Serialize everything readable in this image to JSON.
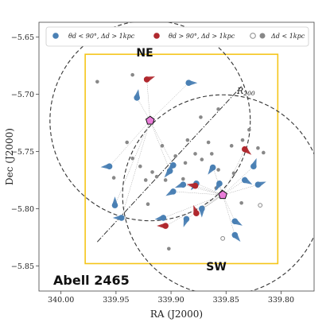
{
  "chart_data": {
    "type": "scatter",
    "xlabel": "RA (J2000)",
    "ylabel": "Dec (J2000)",
    "xlim": [
      340.02,
      339.77
    ],
    "ylim": [
      -5.872,
      -5.637
    ],
    "x_ticks": [
      "340.00",
      "339.95",
      "339.90",
      "339.85",
      "339.80"
    ],
    "y_ticks": [
      "−5.65",
      "−5.70",
      "−5.75",
      "−5.80",
      "−5.85"
    ],
    "annotations": {
      "ne_label": "NE",
      "sw_label": "SW",
      "r200_label": "R200",
      "cluster_name": "Abell 2465"
    },
    "legend": {
      "placement": "top",
      "entries": [
        {
          "label": "θd < 90°, Δd > 1kpc",
          "color": "#4a80b4"
        },
        {
          "label": "θd > 90°, Δd > 1kpc",
          "color": "#b0282e"
        },
        {
          "label": "Δd < 1kpc",
          "color": "#888888"
        }
      ]
    },
    "centers": [
      {
        "name": "NE",
        "ra": 339.919,
        "dec": -5.723
      },
      {
        "name": "SW",
        "ra": 339.853,
        "dec": -5.788
      }
    ],
    "r200_radius_deg": 0.091,
    "box": {
      "ra_min": 339.803,
      "ra_max": 339.978,
      "dec_min": -5.848,
      "dec_max": -5.665
    },
    "axis_line": {
      "ra1": 339.967,
      "dec1": -5.829,
      "ra2": 339.836,
      "dec2": -5.693
    },
    "colors": {
      "blue": "#4a80b4",
      "red": "#b0282e",
      "grey": "#888888",
      "box": "#f5c518",
      "center": "#e87cd8"
    },
    "blue_galaxies": [
      {
        "ra": 339.884,
        "dec": -5.69,
        "angle": 0
      },
      {
        "ra": 339.931,
        "dec": -5.703,
        "angle": 80
      },
      {
        "ra": 339.956,
        "dec": -5.763,
        "angle": 185
      },
      {
        "ra": 339.898,
        "dec": -5.762,
        "angle": 225
      },
      {
        "ra": 339.901,
        "dec": -5.767,
        "angle": 230
      },
      {
        "ra": 339.889,
        "dec": -5.779,
        "angle": 200
      },
      {
        "ra": 339.898,
        "dec": -5.785,
        "angle": 210
      },
      {
        "ra": 339.862,
        "dec": -5.764,
        "angle": 235
      },
      {
        "ra": 339.856,
        "dec": -5.778,
        "angle": 240
      },
      {
        "ra": 339.877,
        "dec": -5.778,
        "angle": 230
      },
      {
        "ra": 339.951,
        "dec": -5.797,
        "angle": 90
      },
      {
        "ra": 339.945,
        "dec": -5.808,
        "angle": 180
      },
      {
        "ra": 339.907,
        "dec": -5.808,
        "angle": 190
      },
      {
        "ra": 339.886,
        "dec": -5.809,
        "angle": 250
      },
      {
        "ra": 339.872,
        "dec": -5.8,
        "angle": 270
      },
      {
        "ra": 339.833,
        "dec": -5.775,
        "angle": 330
      },
      {
        "ra": 339.821,
        "dec": -5.779,
        "angle": 20
      },
      {
        "ra": 339.842,
        "dec": -5.811,
        "angle": 330
      },
      {
        "ra": 339.842,
        "dec": -5.823,
        "angle": 310
      },
      {
        "ra": 339.825,
        "dec": -5.763,
        "angle": 70
      }
    ],
    "red_galaxies": [
      {
        "ra": 339.922,
        "dec": -5.687,
        "angle": 20
      },
      {
        "ra": 339.833,
        "dec": -5.748,
        "angle": 320
      },
      {
        "ra": 339.878,
        "dec": -5.78,
        "angle": 170
      },
      {
        "ra": 339.905,
        "dec": -5.815,
        "angle": 180
      },
      {
        "ra": 339.877,
        "dec": -5.804,
        "angle": 110
      }
    ],
    "grey_galaxies": [
      {
        "ra": 339.967,
        "dec": -5.689
      },
      {
        "ra": 339.935,
        "dec": -5.683
      },
      {
        "ra": 339.873,
        "dec": -5.72
      },
      {
        "ra": 339.857,
        "dec": -5.713
      },
      {
        "ra": 339.94,
        "dec": -5.742
      },
      {
        "ra": 339.935,
        "dec": -5.756
      },
      {
        "ra": 339.928,
        "dec": -5.763
      },
      {
        "ra": 339.917,
        "dec": -5.768
      },
      {
        "ra": 339.908,
        "dec": -5.745
      },
      {
        "ra": 339.905,
        "dec": -5.775
      },
      {
        "ra": 339.896,
        "dec": -5.754
      },
      {
        "ra": 339.887,
        "dec": -5.76
      },
      {
        "ra": 339.885,
        "dec": -5.74
      },
      {
        "ra": 339.878,
        "dec": -5.752
      },
      {
        "ra": 339.872,
        "dec": -5.757
      },
      {
        "ra": 339.866,
        "dec": -5.742
      },
      {
        "ra": 339.863,
        "dec": -5.752
      },
      {
        "ra": 339.857,
        "dec": -5.766
      },
      {
        "ra": 339.845,
        "dec": -5.745
      },
      {
        "ra": 339.835,
        "dec": -5.74
      },
      {
        "ra": 339.829,
        "dec": -5.731
      },
      {
        "ra": 339.821,
        "dec": -5.747
      },
      {
        "ra": 339.816,
        "dec": -5.751
      },
      {
        "ra": 339.859,
        "dec": -5.782
      },
      {
        "ra": 339.836,
        "dec": -5.795
      },
      {
        "ra": 339.871,
        "dec": -5.799
      },
      {
        "ra": 339.913,
        "dec": -5.772
      },
      {
        "ra": 339.921,
        "dec": -5.796
      },
      {
        "ra": 339.952,
        "dec": -5.773
      },
      {
        "ra": 339.923,
        "dec": -5.775
      },
      {
        "ra": 339.902,
        "dec": -5.835
      },
      {
        "ra": 339.889,
        "dec": -5.774
      },
      {
        "ra": 339.843,
        "dec": -5.769
      }
    ],
    "hollow_galaxies": [
      {
        "ra": 339.853,
        "dec": -5.826
      },
      {
        "ra": 339.819,
        "dec": -5.797
      }
    ]
  }
}
